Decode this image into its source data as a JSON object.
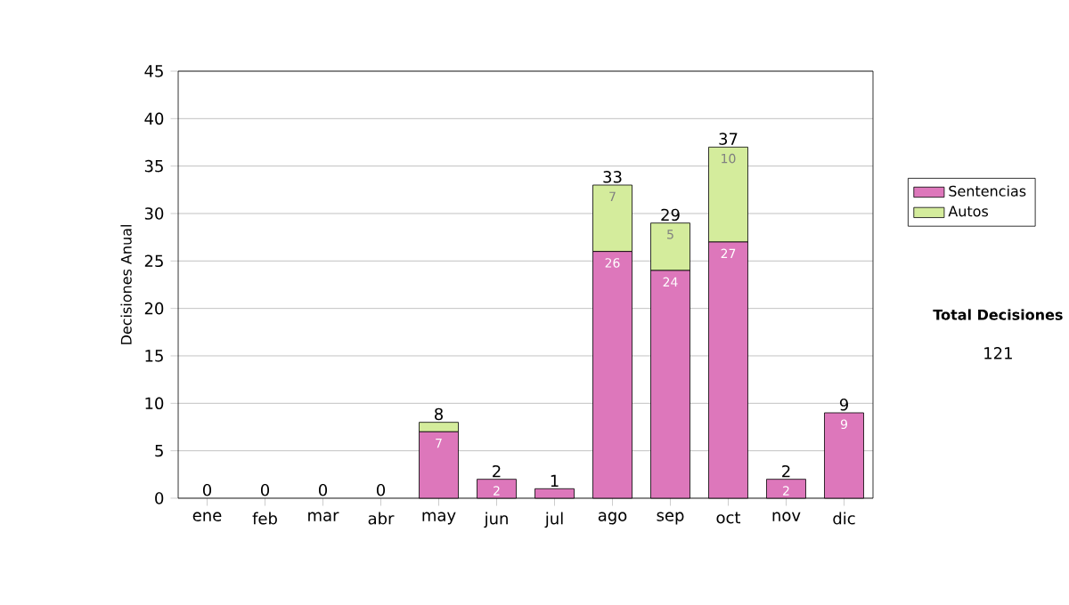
{
  "chart_data": {
    "type": "bar",
    "stacked": true,
    "ylabel": "Decisiones Anual",
    "categories": [
      "ene",
      "feb",
      "mar",
      "abr",
      "may",
      "jun",
      "jul",
      "ago",
      "sep",
      "oct",
      "nov",
      "dic"
    ],
    "series": [
      {
        "name": "Sentencias",
        "color": "#dd77bb",
        "values": [
          0,
          0,
          0,
          0,
          7,
          2,
          1,
          26,
          24,
          27,
          2,
          9
        ],
        "value_labels": [
          null,
          null,
          null,
          null,
          "7",
          "2",
          null,
          "26",
          "24",
          "27",
          "2",
          "9"
        ]
      },
      {
        "name": "Autos",
        "color": "#d4ec9c",
        "values": [
          0,
          0,
          0,
          0,
          1,
          0,
          0,
          7,
          5,
          10,
          0,
          0
        ],
        "value_labels": [
          null,
          null,
          null,
          null,
          null,
          null,
          null,
          "7",
          "5",
          "10",
          null,
          null
        ]
      }
    ],
    "totals": [
      "0",
      "0",
      "0",
      "0",
      "8",
      "2",
      "1",
      "33",
      "29",
      "37",
      "2",
      "9"
    ],
    "ylim": [
      0,
      45
    ],
    "yticks": [
      0,
      5,
      10,
      15,
      20,
      25,
      30,
      35,
      40,
      45
    ],
    "grid": "y",
    "legend": "right",
    "annotations": [
      "Total Decisiones",
      "121"
    ]
  }
}
